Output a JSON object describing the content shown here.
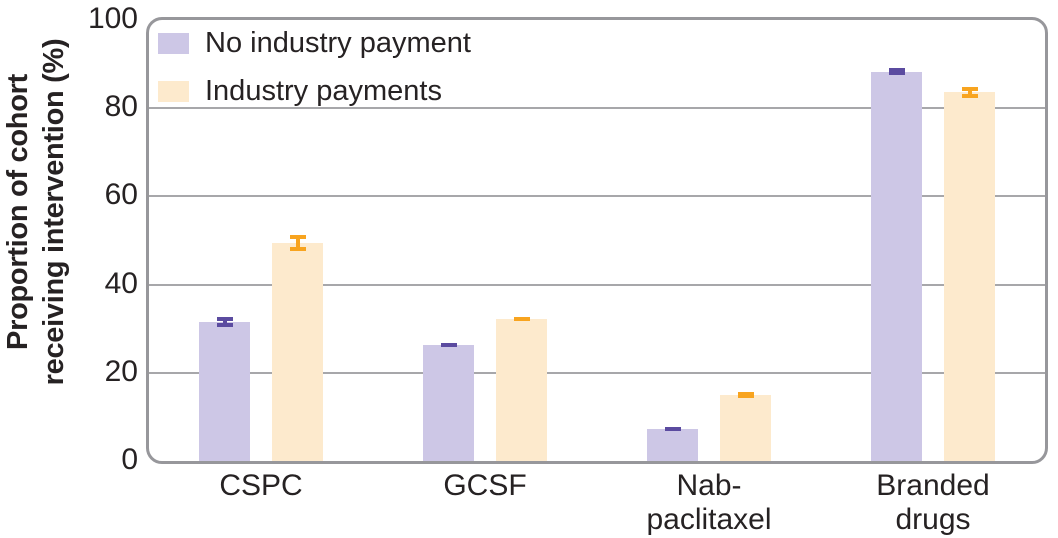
{
  "figure": {
    "background": "#ffffff",
    "border_color": "#97979b",
    "gridline_color": "#a7a7aa",
    "text_color": "#262223"
  },
  "y_axis": {
    "label_lines": [
      "Proportion of cohort",
      "receiving intervention (%)"
    ]
  },
  "chart_data": {
    "type": "bar",
    "title": "",
    "xlabel": "",
    "ylabel": "Proportion of cohort receiving intervention (%)",
    "ylim": [
      0,
      100
    ],
    "yticks": [
      0,
      20,
      40,
      60,
      80,
      100
    ],
    "grid": true,
    "legend_position": "top-left",
    "error_bars": true,
    "categories": [
      "CSPC",
      "GCSF",
      "Nab-paclitaxel",
      "Branded drugs"
    ],
    "category_display": [
      "CSPC",
      "GCSF",
      "Nab-\npaclitaxel",
      "Branded\ndrugs"
    ],
    "series": [
      {
        "name": "No industry payment",
        "color": "#cdc7e6",
        "error_color": "#5b4ba0",
        "values": [
          31.5,
          26.3,
          7.2,
          88.3
        ],
        "ci_low": [
          30.3,
          25.8,
          6.9,
          87.5
        ],
        "ci_high": [
          32.7,
          26.8,
          7.6,
          89.1
        ]
      },
      {
        "name": "Industry payments",
        "color": "#fdeacd",
        "error_color": "#f8a41f",
        "values": [
          49.5,
          32.2,
          15.0,
          83.6
        ],
        "ci_low": [
          47.7,
          31.7,
          14.3,
          82.3
        ],
        "ci_high": [
          51.3,
          32.7,
          15.7,
          84.8
        ]
      }
    ]
  }
}
